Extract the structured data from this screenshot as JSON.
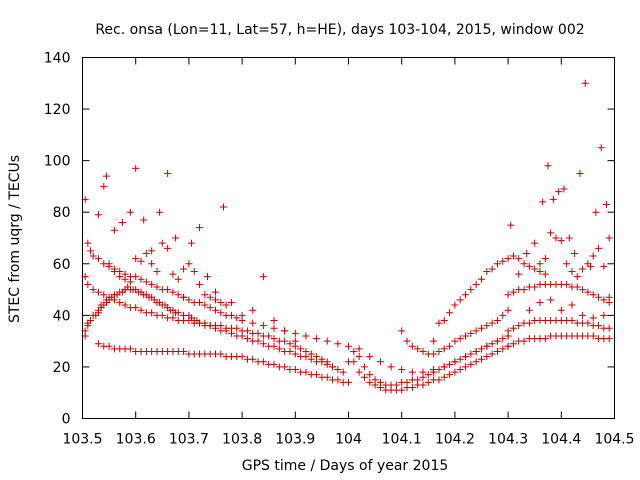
{
  "chart_data": {
    "type": "scatter",
    "title": "Rec. onsa (Lon=11, Lat=57, h=HE), days 103-104, 2015, window 002",
    "xlabel": "GPS time / Days of year 2015",
    "ylabel": "STEC from uqrg / TECUs",
    "xlim": [
      103.5,
      104.5
    ],
    "ylim": [
      0,
      140
    ],
    "x_ticks": [
      103.5,
      103.6,
      103.7,
      103.8,
      103.9,
      104.0,
      104.1,
      104.2,
      104.3,
      104.4,
      104.5
    ],
    "x_tick_labels": [
      "103.5",
      "103.6",
      "103.7",
      "103.8",
      "103.9",
      "104",
      "104.1",
      "104.2",
      "104.3",
      "104.4",
      "104.5"
    ],
    "y_ticks": [
      0,
      20,
      40,
      60,
      80,
      100,
      120,
      140
    ],
    "y_tick_labels": [
      "0",
      "20",
      "40",
      "60",
      "80",
      "100",
      "120",
      "140"
    ],
    "grid": false,
    "legend": "none",
    "marker": "plus",
    "color": "#cc0000",
    "series": [
      {
        "x": [
          103.505,
          103.505,
          103.51,
          103.51,
          103.515,
          103.52,
          103.525,
          103.53,
          103.53,
          103.535,
          103.535,
          103.54,
          103.545,
          103.545,
          103.55,
          103.555,
          103.56,
          103.565,
          103.57,
          103.575,
          103.58,
          103.58,
          103.585,
          103.59,
          103.595,
          103.6,
          103.605,
          103.61,
          103.615,
          103.62,
          103.625,
          103.63,
          103.635,
          103.64,
          103.645,
          103.65,
          103.655,
          103.66,
          103.665,
          103.67,
          103.675,
          103.68,
          103.69,
          103.7,
          103.705,
          103.71,
          103.715,
          103.72,
          103.73,
          103.74,
          103.75,
          103.76,
          103.77,
          103.78,
          103.79,
          103.8,
          103.81,
          103.82,
          103.83,
          103.84,
          103.85,
          103.86,
          103.87,
          103.88,
          103.89,
          103.9,
          103.91,
          103.92,
          103.93,
          103.94,
          103.95,
          103.96,
          103.97,
          103.98,
          103.99
        ],
        "y": [
          32,
          34,
          36,
          37,
          38,
          40,
          40,
          41,
          42,
          43,
          44,
          44,
          45,
          46,
          46,
          47,
          48,
          48,
          49,
          49,
          50,
          50,
          51,
          50,
          50,
          50,
          49,
          49,
          48,
          48,
          47,
          47,
          46,
          45,
          45,
          44,
          44,
          43,
          42,
          42,
          41,
          41,
          40,
          40,
          39,
          38,
          38,
          37,
          36,
          36,
          35,
          34,
          34,
          33,
          32,
          32,
          31,
          30,
          30,
          29,
          28,
          28,
          27,
          26,
          26,
          25,
          24,
          24,
          23,
          22,
          22,
          21,
          20,
          19,
          18
        ]
      },
      {
        "x": [
          103.505,
          103.51,
          103.52,
          103.53,
          103.54,
          103.55,
          103.56,
          103.57,
          103.58,
          103.59,
          103.6,
          103.61,
          103.62,
          103.63,
          103.64,
          103.65,
          103.66,
          103.67,
          103.68,
          103.69,
          103.7,
          103.71,
          103.72,
          103.73,
          103.74,
          103.75,
          103.76,
          103.77,
          103.78,
          103.79,
          103.8,
          103.81,
          103.82,
          103.83,
          103.84,
          103.85,
          103.86,
          103.87,
          103.88,
          103.89,
          103.9,
          103.91,
          103.92,
          103.93,
          103.94,
          103.95,
          103.96,
          103.97
        ],
        "y": [
          55,
          52,
          50,
          49,
          48,
          47,
          46,
          45,
          44,
          43,
          43,
          42,
          41,
          41,
          40,
          40,
          39,
          39,
          38,
          38,
          38,
          37,
          37,
          37,
          36,
          36,
          36,
          35,
          35,
          35,
          34,
          34,
          33,
          33,
          32,
          32,
          31,
          30,
          30,
          29,
          28,
          27,
          26,
          25,
          24,
          23,
          22,
          20
        ]
      },
      {
        "x": [
          103.505,
          103.51,
          103.515,
          103.52,
          103.53,
          103.54,
          103.55,
          103.56,
          103.57,
          103.58,
          103.59,
          103.6,
          103.61,
          103.62,
          103.63,
          103.64,
          103.65,
          103.66,
          103.67,
          103.68,
          103.69,
          103.7,
          103.71,
          103.72,
          103.73,
          103.74,
          103.75,
          103.76,
          103.77,
          103.78,
          103.79,
          103.8,
          103.82,
          103.84,
          103.86,
          103.88,
          103.9,
          103.92,
          103.94,
          103.96,
          103.98,
          104.0
        ],
        "y": [
          85,
          68,
          65,
          63,
          62,
          60,
          59,
          58,
          57,
          56,
          55,
          55,
          54,
          53,
          52,
          51,
          50,
          50,
          49,
          48,
          47,
          46,
          45,
          45,
          44,
          43,
          42,
          41,
          40,
          40,
          39,
          38,
          37,
          36,
          35,
          34,
          33,
          32,
          31,
          30,
          29,
          28
        ]
      },
      {
        "x": [
          103.53,
          103.54,
          103.55,
          103.56,
          103.57,
          103.58,
          103.59,
          103.6,
          103.61,
          103.62,
          103.63,
          103.64,
          103.65,
          103.66,
          103.67,
          103.68,
          103.69,
          103.7,
          103.71,
          103.72,
          103.73,
          103.74,
          103.75,
          103.76,
          103.77,
          103.78,
          103.79,
          103.8,
          103.81,
          103.82,
          103.83,
          103.84,
          103.85,
          103.86,
          103.87,
          103.88,
          103.89,
          103.9,
          103.91,
          103.92,
          103.93,
          103.94,
          103.95,
          103.96,
          103.97,
          103.98,
          103.99,
          104.0
        ],
        "y": [
          29,
          28,
          28,
          27,
          27,
          27,
          27,
          26,
          26,
          26,
          26,
          26,
          26,
          26,
          26,
          26,
          26,
          25,
          25,
          25,
          25,
          25,
          25,
          25,
          24,
          24,
          24,
          24,
          23,
          23,
          22,
          22,
          21,
          21,
          20,
          20,
          19,
          19,
          18,
          18,
          17,
          17,
          16,
          16,
          15,
          15,
          14,
          14
        ]
      },
      {
        "x": [
          103.53,
          103.545,
          103.56,
          103.575,
          103.59,
          103.6,
          103.615,
          103.63,
          103.645,
          103.66,
          103.675,
          103.69,
          103.705,
          103.72,
          103.735,
          103.75,
          103.765,
          103.78,
          103.8,
          103.82,
          103.84,
          103.86,
          103.88,
          103.9
        ],
        "y": [
          79,
          94,
          73,
          76,
          80,
          97,
          77,
          65,
          80,
          95,
          70,
          58,
          68,
          74,
          55,
          49,
          82,
          45,
          40,
          42,
          55,
          38,
          34,
          30
        ]
      },
      {
        "x": [
          103.54,
          103.55,
          103.56,
          103.57,
          103.58,
          103.59,
          103.6,
          103.61,
          103.62,
          103.63,
          103.64,
          103.65,
          103.66,
          103.67,
          103.68,
          103.69,
          103.7,
          103.71,
          103.72,
          103.73,
          103.74,
          103.75,
          103.76,
          103.77
        ],
        "y": [
          90,
          60,
          57,
          55,
          54,
          53,
          62,
          61,
          64,
          60,
          57,
          68,
          66,
          56,
          54,
          47,
          60,
          57,
          52,
          48,
          47,
          46,
          45,
          44
        ]
      },
      {
        "x": [
          104.0,
          104.01,
          104.02,
          104.03,
          104.04,
          104.05,
          104.06,
          104.07,
          104.08,
          104.09,
          104.1,
          104.11,
          104.12,
          104.13,
          104.14,
          104.15,
          104.16,
          104.17,
          104.18,
          104.19,
          104.2,
          104.21,
          104.22,
          104.23,
          104.24,
          104.25,
          104.26,
          104.27,
          104.28,
          104.29,
          104.3
        ],
        "y": [
          22,
          22,
          18,
          16,
          14,
          13,
          12,
          11,
          11,
          11,
          11,
          12,
          12,
          13,
          13,
          14,
          15,
          15,
          16,
          17,
          18,
          19,
          20,
          21,
          22,
          23,
          24,
          25,
          26,
          27,
          28
        ]
      },
      {
        "x": [
          104.01,
          104.02,
          104.03,
          104.04,
          104.05,
          104.06,
          104.07,
          104.08,
          104.09,
          104.1,
          104.11,
          104.12,
          104.13,
          104.14,
          104.15,
          104.16,
          104.17,
          104.18,
          104.19,
          104.2,
          104.21,
          104.22,
          104.23,
          104.24,
          104.25,
          104.26,
          104.27,
          104.28,
          104.29,
          104.3
        ],
        "y": [
          26,
          24,
          20,
          17,
          15,
          14,
          13,
          13,
          13,
          14,
          14,
          15,
          15,
          16,
          17,
          18,
          19,
          20,
          21,
          22,
          23,
          24,
          25,
          26,
          27,
          28,
          29,
          30,
          31,
          32
        ]
      },
      {
        "x": [
          104.02,
          104.04,
          104.06,
          104.08,
          104.1,
          104.12,
          104.14,
          104.16,
          104.18,
          104.2,
          104.22,
          104.24,
          104.26,
          104.28,
          104.3
        ],
        "y": [
          27,
          24,
          22,
          20,
          19,
          18,
          18,
          19,
          20,
          22,
          24,
          26,
          28,
          30,
          32
        ]
      },
      {
        "x": [
          104.1,
          104.11,
          104.12,
          104.13,
          104.14,
          104.15,
          104.16,
          104.17,
          104.18,
          104.19,
          104.2,
          104.21,
          104.22,
          104.23,
          104.24,
          104.25,
          104.26,
          104.27,
          104.28,
          104.29,
          104.3
        ],
        "y": [
          34,
          30,
          28,
          27,
          26,
          25,
          25,
          26,
          27,
          28,
          30,
          31,
          32,
          33,
          34,
          35,
          36,
          37,
          38,
          40,
          42
        ]
      },
      {
        "x": [
          104.16,
          104.17,
          104.18,
          104.19,
          104.2,
          104.21,
          104.22,
          104.23,
          104.24,
          104.25,
          104.26,
          104.27,
          104.28,
          104.29,
          104.3,
          104.31,
          104.32,
          104.33,
          104.34,
          104.35,
          104.36,
          104.37
        ],
        "y": [
          30,
          37,
          38,
          41,
          44,
          46,
          48,
          50,
          52,
          54,
          57,
          58,
          60,
          61,
          62,
          63,
          62,
          60,
          59,
          58,
          57,
          56
        ]
      },
      {
        "x": [
          104.3,
          104.31,
          104.32,
          104.33,
          104.34,
          104.35,
          104.36,
          104.37,
          104.38,
          104.39,
          104.4,
          104.41,
          104.42,
          104.43,
          104.44,
          104.45,
          104.46,
          104.47,
          104.48,
          104.49
        ],
        "y": [
          28,
          29,
          30,
          30,
          31,
          31,
          31,
          31,
          32,
          32,
          32,
          32,
          32,
          32,
          32,
          32,
          32,
          31,
          31,
          31
        ]
      },
      {
        "x": [
          104.3,
          104.31,
          104.32,
          104.33,
          104.34,
          104.35,
          104.36,
          104.37,
          104.38,
          104.39,
          104.4,
          104.41,
          104.42,
          104.43,
          104.44,
          104.45,
          104.46,
          104.47,
          104.48,
          104.49
        ],
        "y": [
          34,
          35,
          36,
          37,
          37,
          38,
          38,
          38,
          38,
          38,
          38,
          38,
          38,
          37,
          37,
          37,
          36,
          36,
          35,
          35
        ]
      },
      {
        "x": [
          104.3,
          104.31,
          104.32,
          104.33,
          104.34,
          104.35,
          104.36,
          104.37,
          104.38,
          104.39,
          104.4,
          104.41,
          104.42,
          104.43,
          104.44,
          104.45,
          104.46,
          104.47,
          104.48,
          104.49
        ],
        "y": [
          48,
          49,
          50,
          50,
          51,
          51,
          52,
          52,
          52,
          52,
          52,
          52,
          51,
          51,
          50,
          49,
          48,
          47,
          46,
          45
        ]
      },
      {
        "x": [
          104.305,
          104.32,
          104.335,
          104.35,
          104.365,
          104.375,
          104.385,
          104.395,
          104.405,
          104.415,
          104.425,
          104.435,
          104.445,
          104.455,
          104.465,
          104.475,
          104.485,
          104.49
        ],
        "y": [
          75,
          56,
          64,
          68,
          84,
          98,
          85,
          88,
          89,
          70,
          64,
          95,
          130,
          59,
          80,
          105,
          83,
          70
        ]
      },
      {
        "x": [
          104.36,
          104.37,
          104.38,
          104.39,
          104.4,
          104.41,
          104.42,
          104.43,
          104.44,
          104.45,
          104.46,
          104.47,
          104.48,
          104.49
        ],
        "y": [
          60,
          62,
          72,
          70,
          69,
          60,
          57,
          55,
          58,
          60,
          63,
          66,
          59,
          47
        ]
      },
      {
        "x": [
          104.34,
          104.36,
          104.38,
          104.4,
          104.42,
          104.44,
          104.46,
          104.48
        ],
        "y": [
          42,
          45,
          46,
          42,
          44,
          40,
          39,
          40
        ]
      }
    ]
  }
}
